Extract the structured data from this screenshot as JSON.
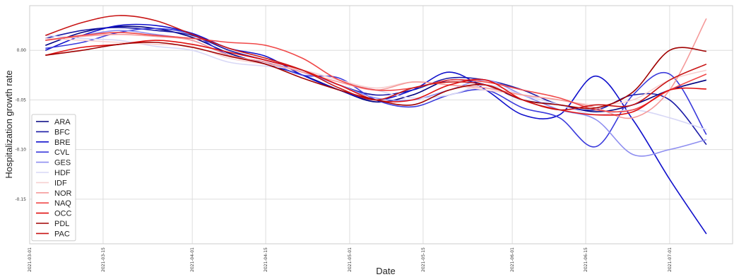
{
  "chart_data": {
    "type": "line",
    "xlabel": "Date",
    "ylabel": "Hospitalization growth rate",
    "x_ticks": [
      "2021-03-01",
      "2021-03-15",
      "2021-04-01",
      "2021-04-15",
      "2021-05-01",
      "2021-05-15",
      "2021-06-01",
      "2021-06-15",
      "2021-07-01"
    ],
    "y_ticks": [
      0.0,
      -0.05,
      -0.1,
      -0.15
    ],
    "y_tick_labels": [
      "0.00",
      "-0.05",
      "-0.10",
      "-0.15"
    ],
    "xlim": [
      "2021-03-01",
      "2021-07-13"
    ],
    "ylim": [
      -0.195,
      0.045
    ],
    "grid": true,
    "legend_position": "lower-left",
    "x": [
      "2021-03-04",
      "2021-03-11",
      "2021-03-18",
      "2021-03-25",
      "2021-04-01",
      "2021-04-08",
      "2021-04-15",
      "2021-04-22",
      "2021-04-29",
      "2021-05-06",
      "2021-05-13",
      "2021-05-20",
      "2021-05-27",
      "2021-06-03",
      "2021-06-10",
      "2021-06-17",
      "2021-06-24",
      "2021-07-01",
      "2021-07-08"
    ],
    "series": [
      {
        "name": "ARA",
        "color": "#000080",
        "values": [
          0.005,
          0.018,
          0.024,
          0.022,
          0.013,
          -0.003,
          -0.014,
          -0.025,
          -0.04,
          -0.052,
          -0.045,
          -0.03,
          -0.035,
          -0.05,
          -0.055,
          -0.062,
          -0.055,
          -0.04,
          -0.03
        ]
      },
      {
        "name": "BFC",
        "color": "#1a1aa6",
        "values": [
          0.012,
          0.02,
          0.023,
          0.02,
          0.015,
          0.0,
          -0.01,
          -0.02,
          -0.035,
          -0.045,
          -0.04,
          -0.028,
          -0.03,
          -0.04,
          -0.055,
          -0.06,
          -0.045,
          -0.05,
          -0.095
        ]
      },
      {
        "name": "BRE",
        "color": "#1010cc",
        "values": [
          0.0,
          0.015,
          0.025,
          0.025,
          0.017,
          0.002,
          -0.006,
          -0.025,
          -0.04,
          -0.05,
          -0.04,
          -0.022,
          -0.04,
          -0.065,
          -0.065,
          -0.026,
          -0.07,
          -0.13,
          -0.185
        ]
      },
      {
        "name": "CVL",
        "color": "#3b3bdc",
        "values": [
          0.002,
          0.008,
          0.018,
          0.022,
          0.016,
          -0.005,
          -0.012,
          -0.025,
          -0.028,
          -0.05,
          -0.057,
          -0.045,
          -0.04,
          -0.058,
          -0.068,
          -0.097,
          -0.045,
          -0.024,
          -0.085
        ]
      },
      {
        "name": "GES",
        "color": "#8e8ef0",
        "values": [
          0.01,
          0.015,
          0.02,
          0.016,
          0.01,
          -0.005,
          -0.012,
          -0.022,
          -0.035,
          -0.048,
          -0.05,
          -0.04,
          -0.03,
          -0.045,
          -0.06,
          -0.07,
          -0.105,
          -0.1,
          -0.09
        ]
      },
      {
        "name": "HDF",
        "color": "#d8d8f6",
        "values": [
          0.015,
          0.012,
          0.01,
          0.004,
          0.0,
          -0.012,
          -0.016,
          -0.02,
          -0.03,
          -0.04,
          -0.048,
          -0.045,
          -0.035,
          -0.045,
          -0.055,
          -0.065,
          -0.06,
          -0.068,
          -0.08
        ]
      },
      {
        "name": "IDF",
        "color": "#f7d0d0",
        "values": [
          0.012,
          0.01,
          0.008,
          0.006,
          0.004,
          -0.008,
          -0.014,
          -0.02,
          -0.03,
          -0.038,
          -0.032,
          -0.035,
          -0.04,
          -0.045,
          -0.05,
          -0.055,
          -0.05,
          -0.03,
          -0.02
        ]
      },
      {
        "name": "NOR",
        "color": "#f59a9a",
        "values": [
          0.01,
          0.014,
          0.016,
          0.014,
          0.01,
          -0.005,
          -0.012,
          -0.022,
          -0.032,
          -0.04,
          -0.032,
          -0.035,
          -0.038,
          -0.045,
          -0.05,
          -0.058,
          -0.068,
          -0.04,
          0.032
        ]
      },
      {
        "name": "NAQ",
        "color": "#f04848",
        "values": [
          0.01,
          0.015,
          0.018,
          0.015,
          0.012,
          0.008,
          0.005,
          -0.008,
          -0.03,
          -0.04,
          -0.038,
          -0.03,
          -0.032,
          -0.04,
          -0.048,
          -0.06,
          -0.06,
          -0.04,
          -0.024
        ]
      },
      {
        "name": "OCC",
        "color": "#e01010",
        "values": [
          -0.005,
          0.003,
          0.006,
          0.01,
          0.006,
          -0.002,
          -0.01,
          -0.02,
          -0.035,
          -0.05,
          -0.05,
          -0.035,
          -0.03,
          -0.05,
          -0.06,
          -0.065,
          -0.062,
          -0.04,
          -0.039
        ]
      },
      {
        "name": "PDL",
        "color": "#a00000",
        "values": [
          -0.005,
          0.0,
          0.006,
          0.008,
          0.003,
          -0.006,
          -0.014,
          -0.028,
          -0.04,
          -0.05,
          -0.055,
          -0.04,
          -0.035,
          -0.05,
          -0.055,
          -0.058,
          -0.042,
          0.0,
          -0.001
        ]
      },
      {
        "name": "PAC",
        "color": "#c81414",
        "values": [
          0.015,
          0.028,
          0.035,
          0.03,
          0.016,
          0.002,
          -0.008,
          -0.02,
          -0.038,
          -0.05,
          -0.038,
          -0.032,
          -0.035,
          -0.05,
          -0.06,
          -0.055,
          -0.055,
          -0.03,
          -0.014
        ]
      }
    ]
  }
}
